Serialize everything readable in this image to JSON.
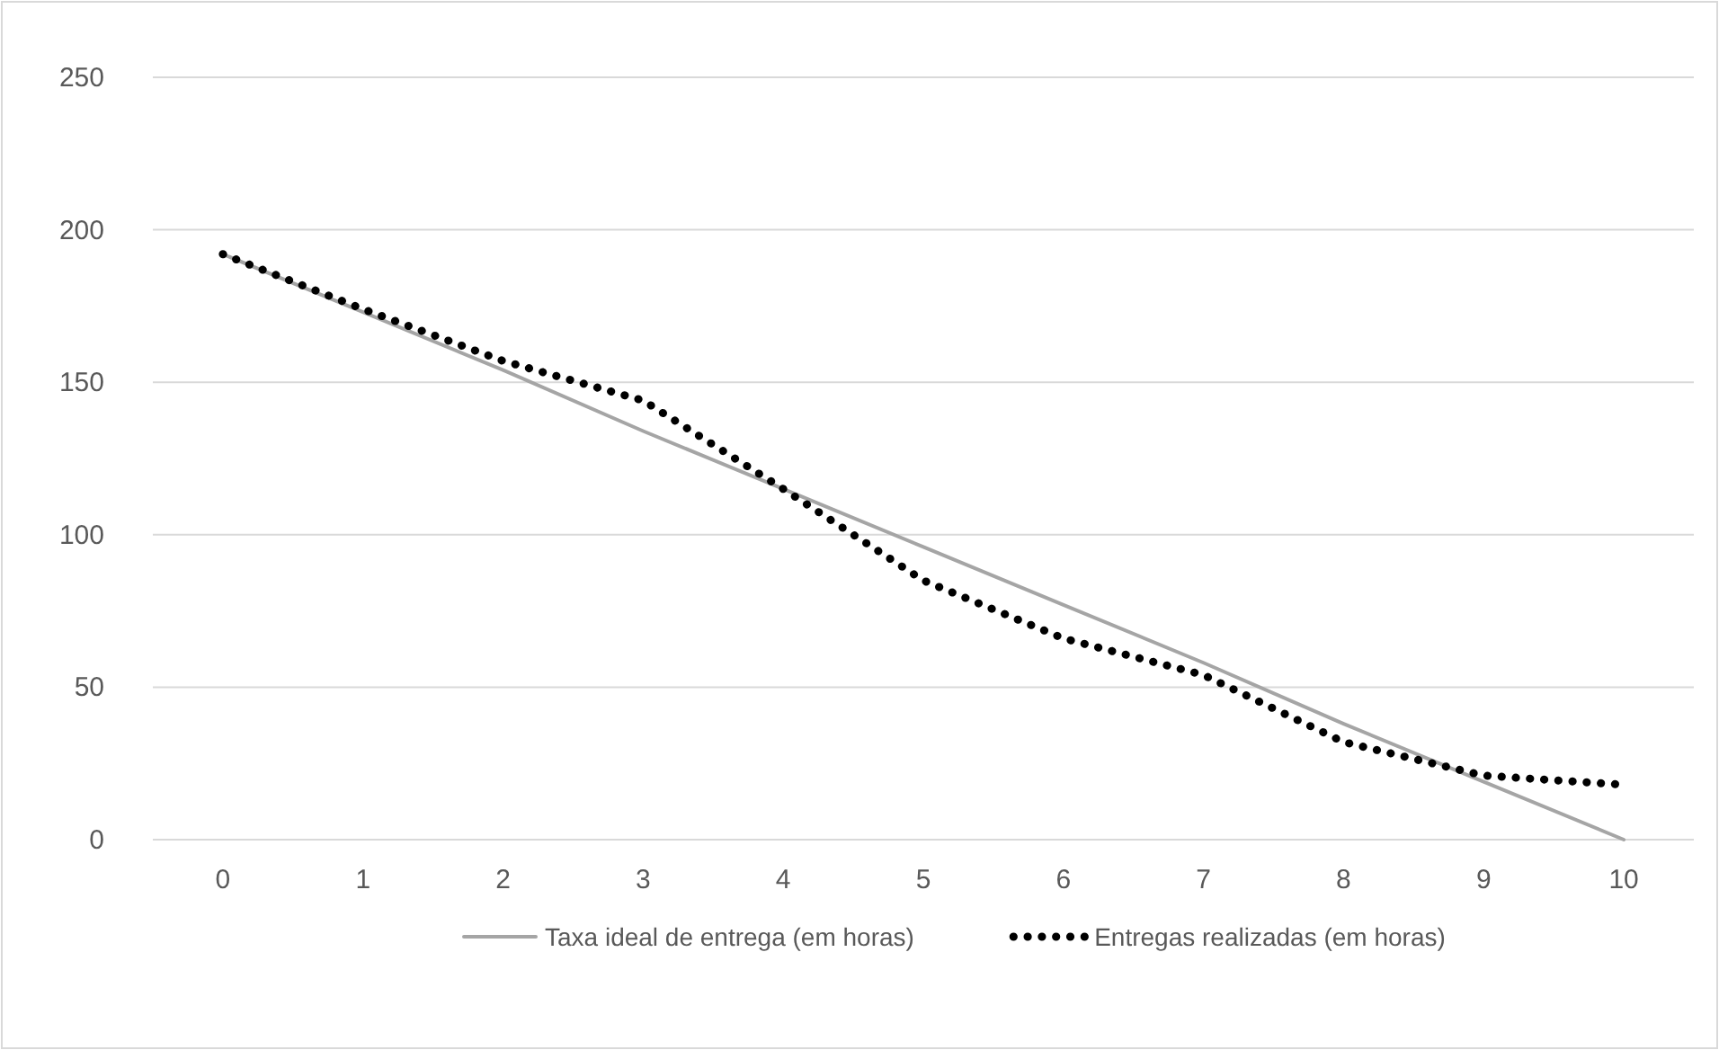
{
  "chart_data": {
    "type": "line",
    "categories": [
      "0",
      "1",
      "2",
      "3",
      "4",
      "5",
      "6",
      "7",
      "8",
      "9",
      "10"
    ],
    "series": [
      {
        "name": "Taxa ideal de entrega (em horas)",
        "color": "#a5a5a5",
        "line_style": "solid",
        "values": [
          192,
          173,
          154,
          134,
          115,
          96,
          77,
          58,
          38,
          19,
          0
        ]
      },
      {
        "name": "Entregas realizadas (em horas)",
        "color": "#000000",
        "line_style": "dotted",
        "values": [
          192,
          174,
          157,
          144,
          115,
          85,
          66,
          54,
          32,
          21,
          18
        ]
      }
    ],
    "ylim": [
      0,
      250
    ],
    "yticks": [
      0,
      50,
      100,
      150,
      200,
      250
    ],
    "grid": "y",
    "legend": "bottom",
    "marker": "none"
  }
}
